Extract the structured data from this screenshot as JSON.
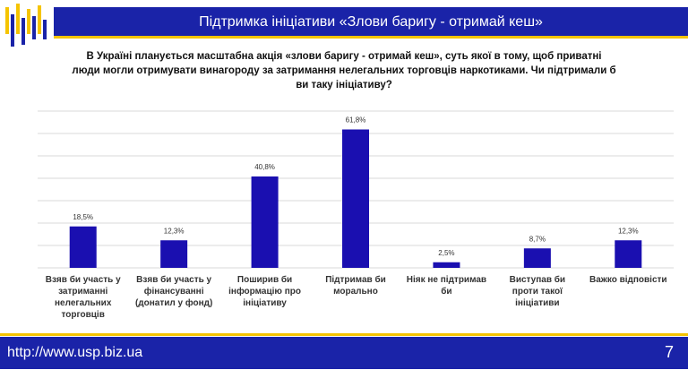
{
  "header": {
    "title": "Підтримка ініціативи «Злови баригу - отримай кеш»"
  },
  "chart_data": {
    "type": "bar",
    "title": "В Україні планується масштабна акція «злови баригу - отримай кеш», суть якої в тому, щоб приватні люди могли отримувати винагороду за затримання нелегальних торговців наркотиками. Чи підтримали б ви таку ініціативу?",
    "categories": [
      "Взяв би участь у затриманні нелегальних торговців",
      "Взяв би участь у фінансуванні (донатил у фонд)",
      "Поширив би інформацію про ініціативу",
      "Підтримав би морально",
      "Ніяк не підтримав би",
      "Виступав би проти такої ініціативи",
      "Важко відповісти"
    ],
    "values": [
      18.5,
      12.3,
      40.8,
      61.8,
      2.5,
      8.7,
      12.3
    ],
    "value_labels": [
      "18,5%",
      "12,3%",
      "40,8%",
      "61,8%",
      "2,5%",
      "8,7%",
      "12,3%"
    ],
    "color": "#1a0fb0",
    "ylim": [
      0,
      70
    ],
    "yticks": [
      0,
      10,
      20,
      30,
      40,
      50,
      60,
      70
    ],
    "grid": true
  },
  "footer": {
    "url": "http://www.usp.biz.ua",
    "page": "7"
  }
}
